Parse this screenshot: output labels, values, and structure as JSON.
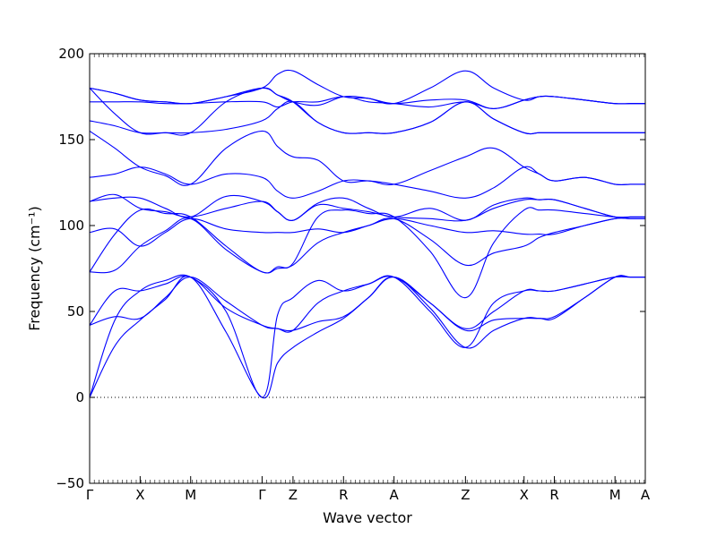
{
  "chart_data": {
    "type": "line",
    "title": "",
    "xlabel": "Wave vector",
    "ylabel": "Frequency (cm⁻¹)",
    "ylim": [
      -50,
      200
    ],
    "yticks": [
      -50,
      0,
      50,
      100,
      150,
      200
    ],
    "ytick_labels": [
      "−50",
      "0",
      "50",
      "100",
      "150",
      "200"
    ],
    "zero_line": {
      "y": 0,
      "style": "dotted"
    },
    "grid": false,
    "legend": "none",
    "line_color": "#0000ff",
    "xticks": [
      {
        "label": "Γ",
        "x": 0.0
      },
      {
        "label": "X",
        "x": 0.5
      },
      {
        "label": "M",
        "x": 1.0
      },
      {
        "label": "Γ",
        "x": 1.707
      },
      {
        "label": "Z",
        "x": 2.013
      },
      {
        "label": "R",
        "x": 2.513
      },
      {
        "label": "A",
        "x": 3.013
      },
      {
        "label": "Z",
        "x": 3.72
      },
      {
        "label": "X",
        "x": 4.3
      },
      {
        "label": "R",
        "x": 4.6
      },
      {
        "label": "M",
        "x": 5.2
      },
      {
        "label": "A",
        "x": 5.5
      }
    ],
    "series": [
      {
        "x": [
          0,
          0.25,
          0.5,
          0.75,
          1.0,
          1.35,
          1.707,
          1.86,
          2.013,
          2.26,
          2.513,
          2.76,
          3.013,
          3.37,
          3.72,
          4.0,
          4.3,
          4.45,
          4.6,
          4.9,
          5.2,
          5.35,
          5.5
        ],
        "y": [
          0,
          30,
          45,
          57,
          70,
          38,
          0,
          20,
          29,
          38,
          46,
          58,
          70,
          52,
          29,
          39,
          46,
          46,
          46,
          58,
          70,
          70,
          70
        ]
      },
      {
        "x": [
          0,
          0.25,
          0.5,
          0.75,
          1.0,
          1.35,
          1.707,
          1.86,
          2.013,
          2.26,
          2.513,
          2.76,
          3.013,
          3.37,
          3.72,
          4.0,
          4.3,
          4.45,
          4.6,
          4.9,
          5.2,
          5.35,
          5.5
        ],
        "y": [
          0,
          45,
          62,
          68,
          70,
          50,
          0,
          48,
          58,
          68,
          62,
          66,
          70,
          55,
          40,
          50,
          62,
          62,
          62,
          66,
          70,
          70,
          70
        ]
      },
      {
        "x": [
          0,
          0.25,
          0.5,
          0.75,
          1.0,
          1.35,
          1.707,
          1.86,
          2.013,
          2.26,
          2.513,
          2.76,
          3.013,
          3.37,
          3.72,
          4.0,
          4.3,
          4.45,
          4.6,
          4.9,
          5.2,
          5.35,
          5.5
        ],
        "y": [
          42,
          47,
          46,
          58,
          70,
          56,
          42,
          40,
          39,
          44,
          47,
          58,
          70,
          55,
          39,
          45,
          46,
          46,
          47,
          58,
          70,
          70,
          70
        ]
      },
      {
        "x": [
          0,
          0.25,
          0.5,
          0.75,
          1.0,
          1.35,
          1.707,
          1.86,
          2.013,
          2.26,
          2.513,
          2.76,
          3.013,
          3.37,
          3.72,
          4.0,
          4.3,
          4.45,
          4.6,
          4.9,
          5.2,
          5.35,
          5.5
        ],
        "y": [
          42,
          62,
          62,
          66,
          70,
          52,
          42,
          40,
          39,
          55,
          62,
          66,
          70,
          50,
          29,
          55,
          62,
          62,
          62,
          66,
          70,
          70,
          70
        ]
      },
      {
        "x": [
          0,
          0.25,
          0.5,
          0.75,
          1.0,
          1.35,
          1.707,
          1.86,
          2.013,
          2.26,
          2.513,
          2.76,
          3.013,
          3.37,
          3.72,
          4.0,
          4.3,
          4.45,
          4.6,
          4.9,
          5.2,
          5.35,
          5.5
        ],
        "y": [
          73,
          74,
          88,
          97,
          104,
          86,
          73,
          75,
          77,
          90,
          96,
          100,
          104,
          92,
          77,
          84,
          88,
          93,
          96,
          100,
          104,
          104,
          104
        ]
      },
      {
        "x": [
          0,
          0.25,
          0.5,
          0.75,
          1.0,
          1.35,
          1.707,
          1.86,
          2.013,
          2.26,
          2.513,
          2.76,
          3.013,
          3.37,
          3.72,
          4.0,
          4.3,
          4.45,
          4.6,
          4.9,
          5.2,
          5.35,
          5.5
        ],
        "y": [
          73,
          95,
          109,
          107,
          105,
          88,
          73,
          76,
          78,
          105,
          109,
          107,
          105,
          85,
          58,
          90,
          109,
          109,
          109,
          107,
          105,
          105,
          105
        ]
      },
      {
        "x": [
          0,
          0.25,
          0.5,
          0.75,
          1.0,
          1.35,
          1.707,
          1.86,
          2.013,
          2.26,
          2.513,
          2.76,
          3.013,
          3.37,
          3.72,
          4.0,
          4.3,
          4.45,
          4.6,
          4.9,
          5.2,
          5.35,
          5.5
        ],
        "y": [
          96,
          98,
          88,
          96,
          104,
          98,
          96,
          96,
          96,
          98,
          96,
          100,
          104,
          100,
          96,
          97,
          95,
          95,
          95,
          100,
          104,
          104,
          104
        ]
      },
      {
        "x": [
          0,
          0.25,
          0.5,
          0.75,
          1.0,
          1.35,
          1.707,
          1.86,
          2.013,
          2.26,
          2.513,
          2.76,
          3.013,
          3.37,
          3.72,
          4.0,
          4.3,
          4.45,
          4.6,
          4.9,
          5.2,
          5.35,
          5.5
        ],
        "y": [
          114,
          118,
          110,
          108,
          105,
          110,
          114,
          108,
          103,
          112,
          110,
          108,
          105,
          104,
          103,
          110,
          115,
          115,
          115,
          110,
          105,
          105,
          105
        ]
      },
      {
        "x": [
          0,
          0.25,
          0.5,
          0.75,
          1.0,
          1.35,
          1.707,
          1.86,
          2.013,
          2.26,
          2.513,
          2.76,
          3.013,
          3.37,
          3.72,
          4.0,
          4.3,
          4.45,
          4.6,
          4.9,
          5.2,
          5.35,
          5.5
        ],
        "y": [
          114,
          116,
          116,
          110,
          105,
          117,
          114,
          108,
          103,
          113,
          116,
          110,
          105,
          110,
          103,
          112,
          116,
          115,
          115,
          110,
          105,
          105,
          105
        ]
      },
      {
        "x": [
          0,
          0.25,
          0.5,
          0.75,
          1.0,
          1.35,
          1.707,
          1.86,
          2.013,
          2.26,
          2.513,
          2.76,
          3.013,
          3.37,
          3.72,
          4.0,
          4.3,
          4.45,
          4.6,
          4.9,
          5.2,
          5.35,
          5.5
        ],
        "y": [
          128,
          130,
          134,
          130,
          124,
          130,
          128,
          120,
          116,
          120,
          126,
          126,
          124,
          120,
          116,
          122,
          134,
          130,
          126,
          128,
          124,
          124,
          124
        ]
      },
      {
        "x": [
          0,
          0.25,
          0.5,
          0.75,
          1.0,
          1.35,
          1.707,
          1.86,
          2.013,
          2.26,
          2.513,
          2.76,
          3.013,
          3.37,
          3.72,
          4.0,
          4.3,
          4.45,
          4.6,
          4.9,
          5.2,
          5.35,
          5.5
        ],
        "y": [
          155,
          145,
          134,
          129,
          124,
          145,
          155,
          146,
          140,
          138,
          126,
          126,
          124,
          132,
          140,
          145,
          134,
          130,
          126,
          128,
          124,
          124,
          124
        ]
      },
      {
        "x": [
          0,
          0.25,
          0.5,
          0.75,
          1.0,
          1.35,
          1.707,
          1.86,
          2.013,
          2.26,
          2.513,
          2.76,
          3.013,
          3.37,
          3.72,
          4.0,
          4.3,
          4.45,
          4.6,
          4.9,
          5.2,
          5.35,
          5.5
        ],
        "y": [
          161,
          158,
          154,
          154,
          154,
          156,
          161,
          168,
          172,
          160,
          154,
          154,
          154,
          160,
          172,
          162,
          154,
          154,
          154,
          154,
          154,
          154,
          154
        ]
      },
      {
        "x": [
          0,
          0.25,
          0.5,
          0.75,
          1.0,
          1.35,
          1.707,
          1.86,
          2.013,
          2.26,
          2.513,
          2.76,
          3.013,
          3.37,
          3.72,
          4.0,
          4.3,
          4.45,
          4.6,
          4.9,
          5.2,
          5.35,
          5.5
        ],
        "y": [
          180,
          165,
          154,
          154,
          154,
          172,
          180,
          176,
          172,
          160,
          154,
          154,
          154,
          160,
          172,
          162,
          154,
          154,
          154,
          154,
          154,
          154,
          154
        ]
      },
      {
        "x": [
          0,
          0.25,
          0.5,
          0.75,
          1.0,
          1.35,
          1.707,
          1.86,
          2.013,
          2.26,
          2.513,
          2.76,
          3.013,
          3.37,
          3.72,
          4.0,
          4.3,
          4.45,
          4.6,
          4.9,
          5.2,
          5.35,
          5.5
        ],
        "y": [
          172,
          172,
          172,
          171,
          171,
          172,
          172,
          169,
          172,
          172,
          175,
          172,
          171,
          169,
          172,
          168,
          173,
          175,
          175,
          173,
          171,
          171,
          171
        ]
      },
      {
        "x": [
          0,
          0.25,
          0.5,
          0.75,
          1.0,
          1.35,
          1.707,
          1.86,
          2.013,
          2.26,
          2.513,
          2.76,
          3.013,
          3.37,
          3.72,
          4.0,
          4.3,
          4.45,
          4.6,
          4.9,
          5.2,
          5.35,
          5.5
        ],
        "y": [
          180,
          177,
          173,
          172,
          171,
          175,
          180,
          176,
          172,
          170,
          175,
          174,
          171,
          173,
          173,
          168,
          173,
          175,
          175,
          173,
          171,
          171,
          171
        ]
      },
      {
        "x": [
          0,
          0.25,
          0.5,
          0.75,
          1.0,
          1.35,
          1.707,
          1.86,
          2.013,
          2.26,
          2.513,
          2.76,
          3.013,
          3.37,
          3.72,
          4.0,
          4.3,
          4.45,
          4.6,
          4.9,
          5.2,
          5.35,
          5.5
        ],
        "y": [
          180,
          177,
          173,
          172,
          171,
          175,
          180,
          188,
          190,
          182,
          175,
          174,
          171,
          180,
          190,
          180,
          173,
          175,
          175,
          173,
          171,
          171,
          171
        ]
      }
    ]
  }
}
